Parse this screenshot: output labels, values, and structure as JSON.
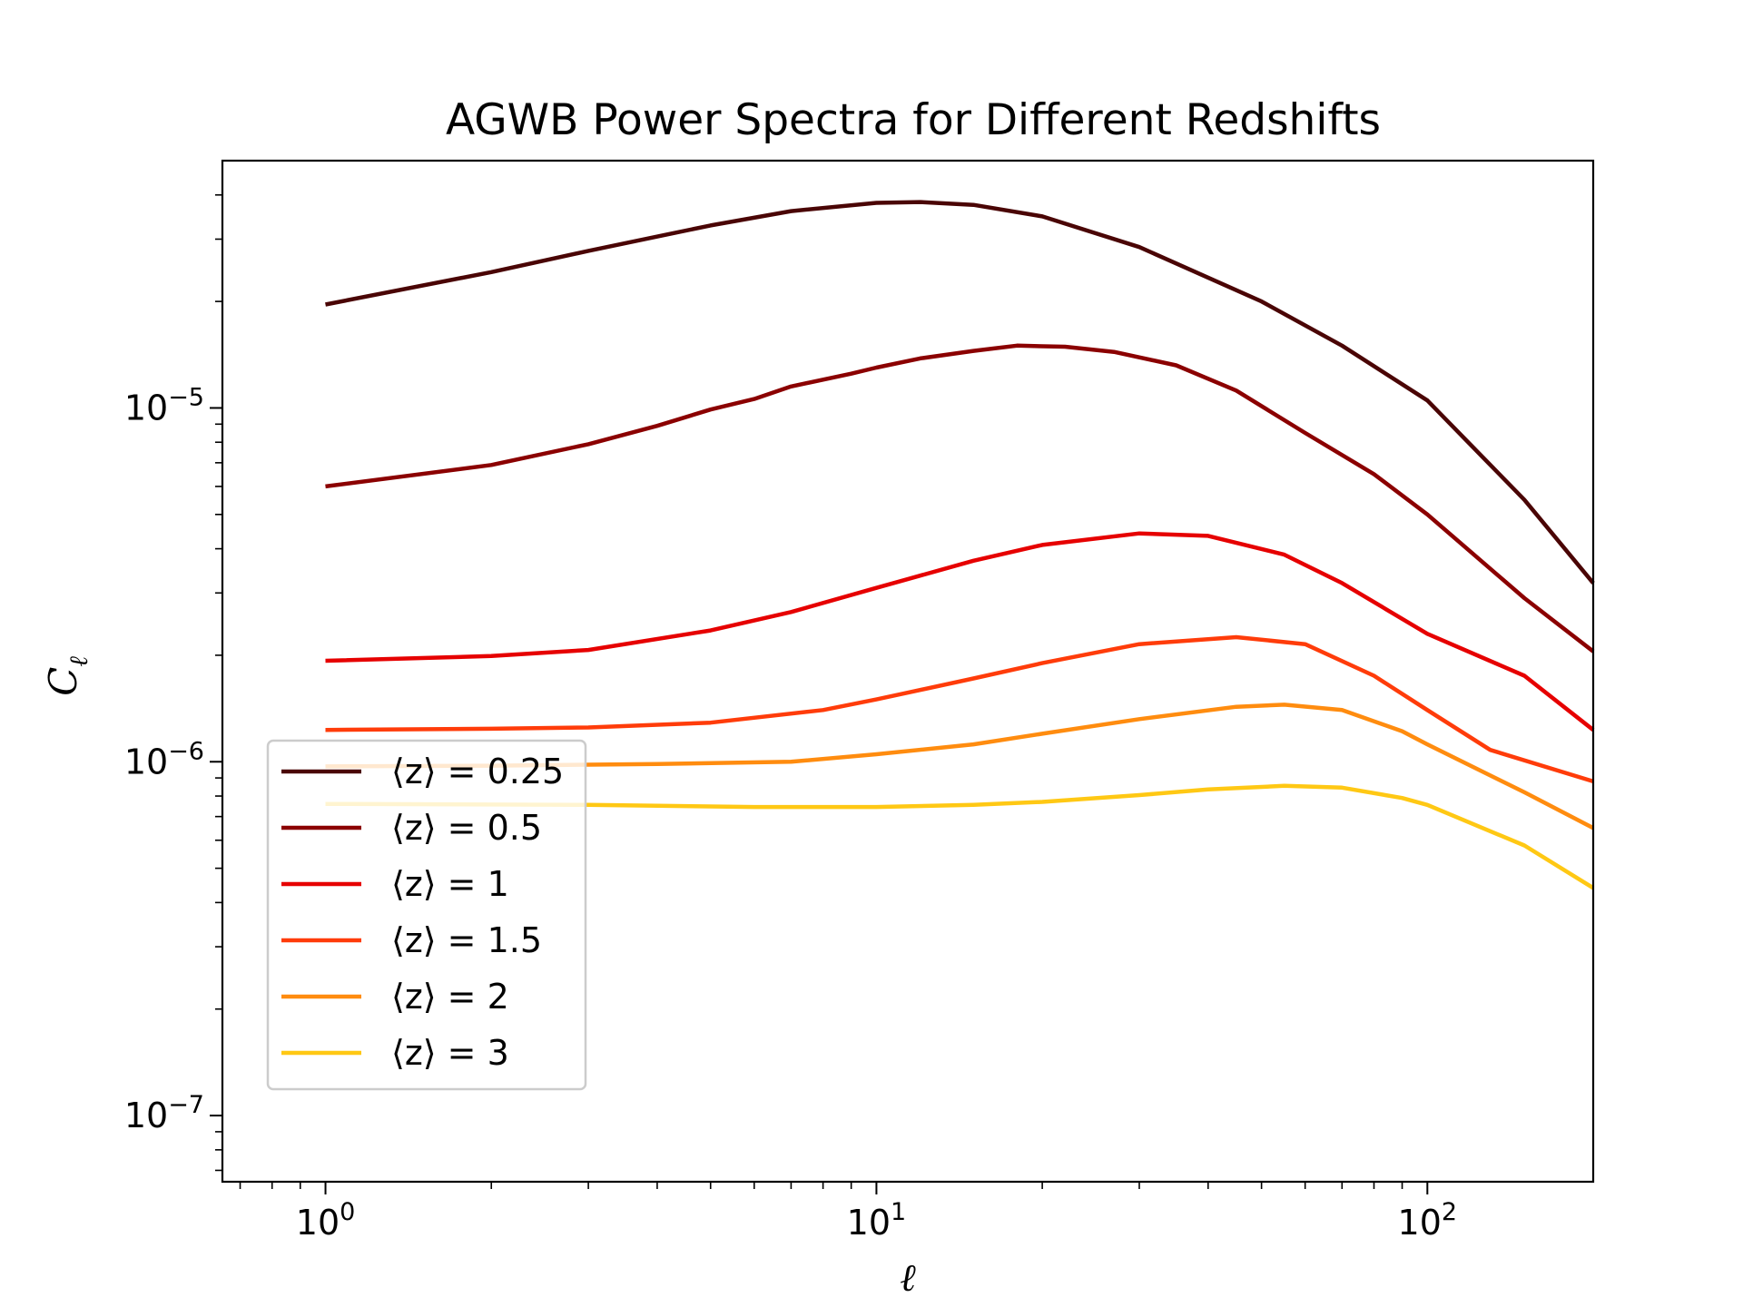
{
  "chart_data": {
    "type": "line",
    "title": "AGWB Power Spectra for Different Redshifts",
    "xlabel": "ℓ",
    "ylabel": "Cℓ",
    "xscale": "log",
    "yscale": "log",
    "xlim": [
      0.65,
      200
    ],
    "ylim": [
      6.5e-08,
      5e-05
    ],
    "x_ticks": [
      {
        "value": 1,
        "base": "10",
        "exp": "0"
      },
      {
        "value": 10,
        "base": "10",
        "exp": "1"
      },
      {
        "value": 100,
        "base": "10",
        "exp": "2"
      }
    ],
    "y_ticks": [
      {
        "value": 1e-07,
        "base": "10",
        "exp": "−7"
      },
      {
        "value": 1e-06,
        "base": "10",
        "exp": "−6"
      },
      {
        "value": 1e-05,
        "base": "10",
        "exp": "−5"
      }
    ],
    "grid": false,
    "legend_position": "lower-left",
    "series": [
      {
        "name": "⟨z⟩ = 0.25",
        "color": "#4a0505",
        "points": [
          [
            1,
            1.96e-05
          ],
          [
            2,
            2.42e-05
          ],
          [
            3,
            2.78e-05
          ],
          [
            5,
            3.28e-05
          ],
          [
            7,
            3.6e-05
          ],
          [
            10,
            3.8e-05
          ],
          [
            12,
            3.82e-05
          ],
          [
            15,
            3.75e-05
          ],
          [
            20,
            3.48e-05
          ],
          [
            30,
            2.85e-05
          ],
          [
            50,
            2e-05
          ],
          [
            70,
            1.5e-05
          ],
          [
            100,
            1.05e-05
          ],
          [
            150,
            5.5e-06
          ],
          [
            200,
            3.2e-06
          ]
        ]
      },
      {
        "name": "⟨z⟩ = 0.5",
        "color": "#8b0000",
        "points": [
          [
            1,
            6e-06
          ],
          [
            2,
            6.9e-06
          ],
          [
            3,
            7.9e-06
          ],
          [
            4,
            8.9e-06
          ],
          [
            5,
            9.9e-06
          ],
          [
            6,
            1.06e-05
          ],
          [
            7,
            1.15e-05
          ],
          [
            9,
            1.25e-05
          ],
          [
            10,
            1.3e-05
          ],
          [
            12,
            1.38e-05
          ],
          [
            15,
            1.45e-05
          ],
          [
            18,
            1.5e-05
          ],
          [
            22,
            1.49e-05
          ],
          [
            27,
            1.44e-05
          ],
          [
            35,
            1.32e-05
          ],
          [
            45,
            1.12e-05
          ],
          [
            60,
            8.5e-06
          ],
          [
            80,
            6.5e-06
          ],
          [
            100,
            5e-06
          ],
          [
            150,
            2.9e-06
          ],
          [
            200,
            2.05e-06
          ]
        ]
      },
      {
        "name": "⟨z⟩ = 1",
        "color": "#e60000",
        "points": [
          [
            1,
            1.93e-06
          ],
          [
            2,
            1.99e-06
          ],
          [
            3,
            2.07e-06
          ],
          [
            5,
            2.35e-06
          ],
          [
            7,
            2.65e-06
          ],
          [
            10,
            3.1e-06
          ],
          [
            15,
            3.7e-06
          ],
          [
            20,
            4.1e-06
          ],
          [
            30,
            4.42e-06
          ],
          [
            40,
            4.35e-06
          ],
          [
            55,
            3.85e-06
          ],
          [
            70,
            3.2e-06
          ],
          [
            100,
            2.3e-06
          ],
          [
            150,
            1.75e-06
          ],
          [
            200,
            1.23e-06
          ]
        ]
      },
      {
        "name": "⟨z⟩ = 1.5",
        "color": "#ff3c0a",
        "points": [
          [
            1,
            1.23e-06
          ],
          [
            2,
            1.24e-06
          ],
          [
            3,
            1.25e-06
          ],
          [
            5,
            1.29e-06
          ],
          [
            8,
            1.4e-06
          ],
          [
            10,
            1.5e-06
          ],
          [
            15,
            1.72e-06
          ],
          [
            20,
            1.9e-06
          ],
          [
            30,
            2.15e-06
          ],
          [
            45,
            2.25e-06
          ],
          [
            60,
            2.15e-06
          ],
          [
            80,
            1.75e-06
          ],
          [
            100,
            1.4e-06
          ],
          [
            130,
            1.08e-06
          ],
          [
            200,
            8.8e-07
          ]
        ]
      },
      {
        "name": "⟨z⟩ = 2",
        "color": "#ff8c0f",
        "points": [
          [
            1,
            9.7e-07
          ],
          [
            2,
            9.75e-07
          ],
          [
            4,
            9.85e-07
          ],
          [
            7,
            1e-06
          ],
          [
            10,
            1.05e-06
          ],
          [
            15,
            1.12e-06
          ],
          [
            20,
            1.2e-06
          ],
          [
            30,
            1.32e-06
          ],
          [
            45,
            1.43e-06
          ],
          [
            55,
            1.45e-06
          ],
          [
            70,
            1.4e-06
          ],
          [
            90,
            1.22e-06
          ],
          [
            100,
            1.12e-06
          ],
          [
            150,
            8.2e-07
          ],
          [
            200,
            6.5e-07
          ]
        ]
      },
      {
        "name": "⟨z⟩ = 3",
        "color": "#ffc814",
        "points": [
          [
            1,
            7.6e-07
          ],
          [
            3,
            7.55e-07
          ],
          [
            6,
            7.45e-07
          ],
          [
            10,
            7.45e-07
          ],
          [
            15,
            7.55e-07
          ],
          [
            20,
            7.7e-07
          ],
          [
            30,
            8.05e-07
          ],
          [
            40,
            8.35e-07
          ],
          [
            55,
            8.55e-07
          ],
          [
            70,
            8.45e-07
          ],
          [
            90,
            7.9e-07
          ],
          [
            100,
            7.55e-07
          ],
          [
            150,
            5.8e-07
          ],
          [
            200,
            4.4e-07
          ]
        ]
      }
    ]
  }
}
